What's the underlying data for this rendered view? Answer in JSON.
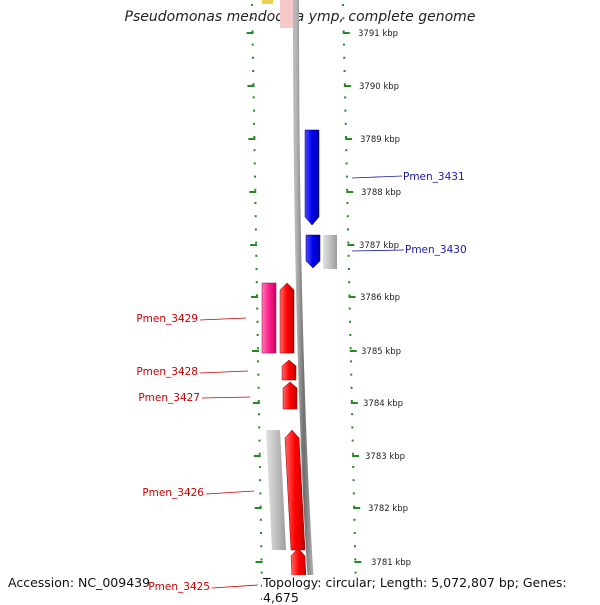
{
  "title": "Pseudomonas mendocina ymp, complete genome",
  "footer": {
    "accession": "Accession: NC_009439",
    "summary": "Topology: circular; Length: 5,072,807 bp; Genes: 4,675"
  },
  "ticks": [
    "3791 kbp",
    "3790 kbp",
    "3789 kbp",
    "3788 kbp",
    "3787 kbp",
    "3786 kbp",
    "3785 kbp",
    "3784 kbp",
    "3783 kbp",
    "3782 kbp",
    "3781 kbp"
  ],
  "genes": [
    {
      "label": "Pmen_3431",
      "color": "#1a1aa6"
    },
    {
      "label": "Pmen_3430",
      "color": "#1a1aa6"
    },
    {
      "label": "Pmen_3429",
      "color": "#cc0000"
    },
    {
      "label": "Pmen_3428",
      "color": "#cc0000"
    },
    {
      "label": "Pmen_3427",
      "color": "#cc0000"
    },
    {
      "label": "Pmen_3426",
      "color": "#cc0000"
    },
    {
      "label": "Pmen_3425",
      "color": "#cc0000"
    }
  ],
  "colors": {
    "forward_strand": "#0000ee",
    "reverse_strand": "#ff0000",
    "rna": "#ff2a8a",
    "other": "#c4c4c4",
    "tick": "#228b22"
  }
}
